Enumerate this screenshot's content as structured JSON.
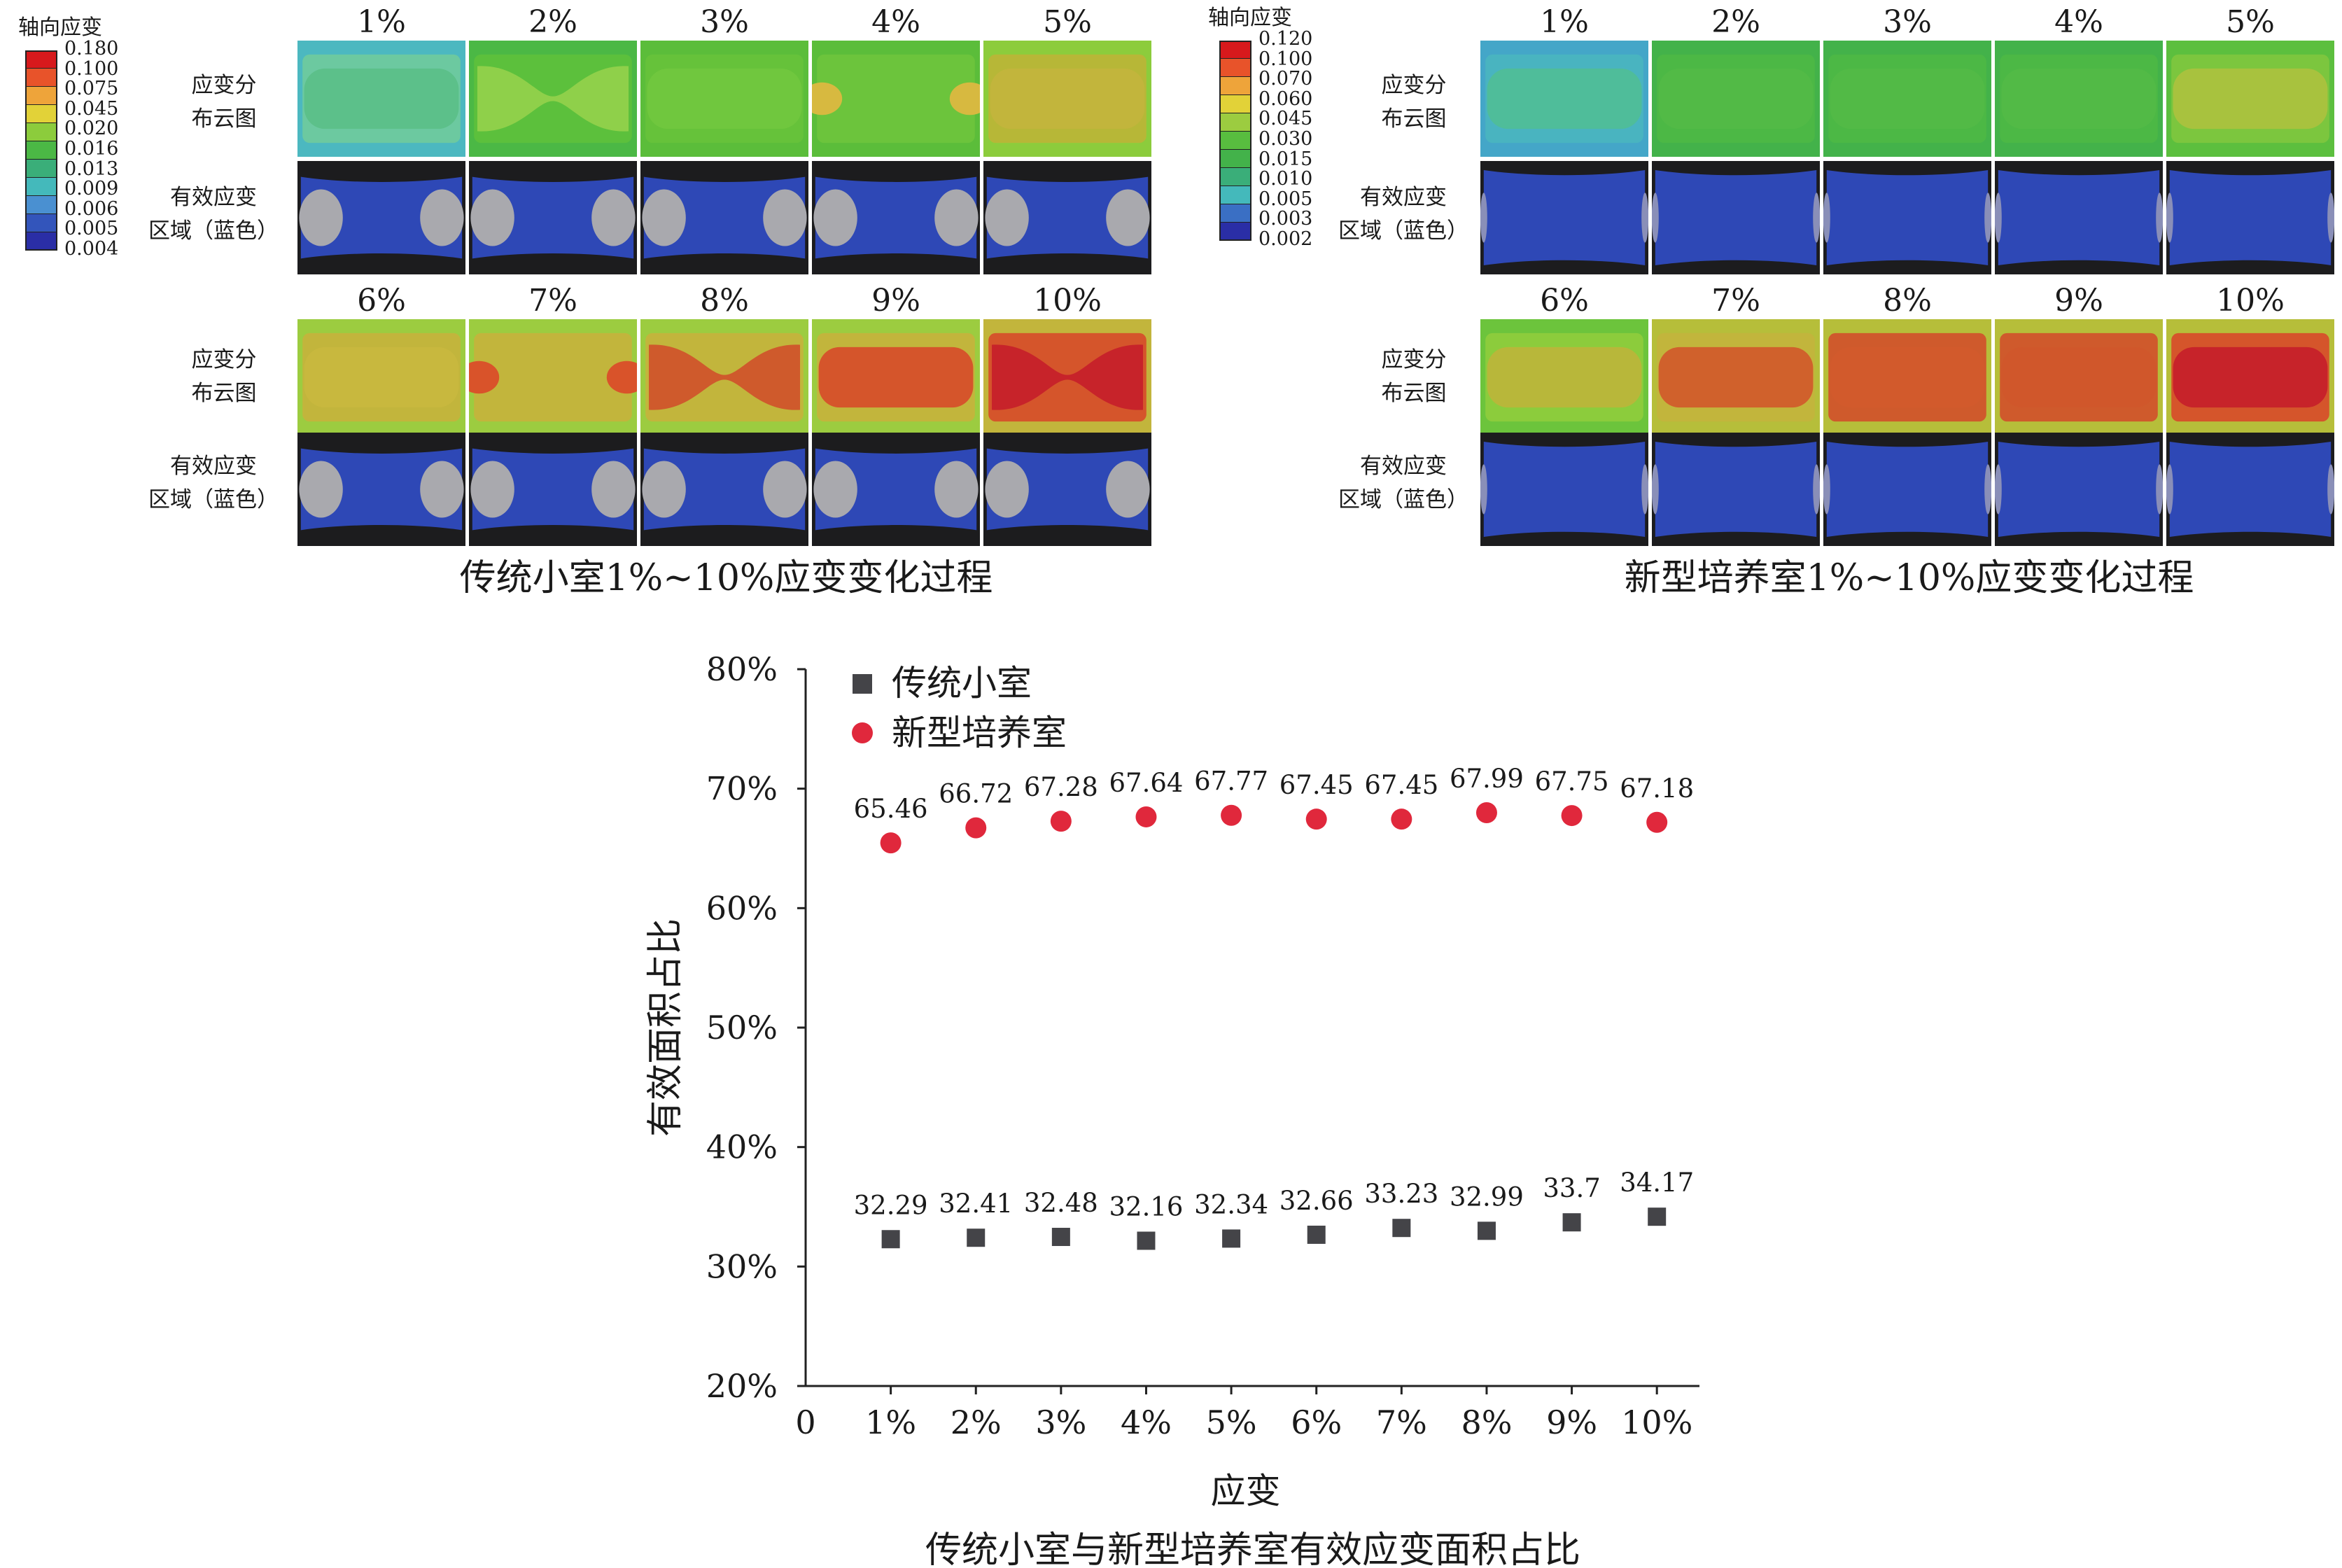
{
  "panels": [
    {
      "legend_title": "轴向应变",
      "legend_values": [
        "0.180",
        "0.100",
        "0.075",
        "0.045",
        "0.020",
        "0.016",
        "0.013",
        "0.009",
        "0.006",
        "0.005",
        "0.004"
      ],
      "legend_colors": [
        "#d7191c",
        "#e8532a",
        "#eea43a",
        "#e2d238",
        "#8ccc3c",
        "#4bb845",
        "#3aae79",
        "#44b9bb",
        "#4a90d1",
        "#3355bb",
        "#2a2ea6"
      ],
      "row1_labels": [
        "1%",
        "2%",
        "3%",
        "4%",
        "5%"
      ],
      "row2_labels": [
        "6%",
        "7%",
        "8%",
        "9%",
        "10%"
      ],
      "row_label_cloud": [
        "应变分",
        "布云图"
      ],
      "row_label_area": [
        "有效应变",
        "区域（蓝色）"
      ],
      "cloud_row1": [
        {
          "base": "#6cc9a0",
          "mid": "#5cc08a",
          "edge": "#4cb8c0",
          "shape": "flat"
        },
        {
          "base": "#5cc03c",
          "mid": "#8fd04a",
          "edge": "#4bb845",
          "shape": "pinch"
        },
        {
          "base": "#66c23a",
          "mid": "#70c73e",
          "edge": "#5bbd3a",
          "shape": "flat"
        },
        {
          "base": "#6cc43c",
          "mid": "#75c83e",
          "edge": "#5bbd3a",
          "shape": "dots",
          "dot": "#d7b940"
        },
        {
          "base": "#b7b737",
          "mid": "#c2b53c",
          "edge": "#8ccc3c",
          "shape": "flat"
        }
      ],
      "cloud_row2": [
        {
          "base": "#c2b53c",
          "mid": "#c8b83e",
          "edge": "#9ccc40",
          "shape": "flat"
        },
        {
          "base": "#c2b53c",
          "mid": "#c8b83e",
          "edge": "#9ccc40",
          "shape": "dots",
          "dot": "#d9532a"
        },
        {
          "base": "#c2b53c",
          "mid": "#cf5a2c",
          "edge": "#9ccc40",
          "shape": "pinch"
        },
        {
          "base": "#c2b53c",
          "mid": "#d5552b",
          "edge": "#9ccc40",
          "shape": "flat"
        },
        {
          "base": "#d5552b",
          "mid": "#c7232a",
          "edge": "#c2b53c",
          "shape": "pinch"
        }
      ],
      "area_style": "ellipses",
      "caption": "传统小室1%~10%应变变化过程"
    },
    {
      "legend_title": "轴向应变",
      "legend_values": [
        "0.120",
        "0.100",
        "0.070",
        "0.060",
        "0.045",
        "0.030",
        "0.015",
        "0.010",
        "0.005",
        "0.003",
        "0.002"
      ],
      "legend_colors": [
        "#d7191c",
        "#e8532a",
        "#eea43a",
        "#e2d238",
        "#9ccc40",
        "#58bd3f",
        "#43b24a",
        "#3aae79",
        "#44b9bb",
        "#3a6fc4",
        "#2a2ea6"
      ],
      "row1_labels": [
        "1%",
        "2%",
        "3%",
        "4%",
        "5%"
      ],
      "row2_labels": [
        "6%",
        "7%",
        "8%",
        "9%",
        "10%"
      ],
      "row_label_cloud": [
        "应变分",
        "布云图"
      ],
      "row_label_area": [
        "有效应变",
        "区域（蓝色）"
      ],
      "cloud_row1": [
        {
          "base": "#49b4c0",
          "mid": "#4fbd9a",
          "edge": "#44a6c8",
          "shape": "flat"
        },
        {
          "base": "#4cb845",
          "mid": "#52ba46",
          "edge": "#43b24a",
          "shape": "flat"
        },
        {
          "base": "#4cb845",
          "mid": "#52ba46",
          "edge": "#43b24a",
          "shape": "flat"
        },
        {
          "base": "#4cb845",
          "mid": "#52ba46",
          "edge": "#43b24a",
          "shape": "flat"
        },
        {
          "base": "#7cc63e",
          "mid": "#a8c23e",
          "edge": "#5cbf3e",
          "shape": "flat"
        }
      ],
      "cloud_row2": [
        {
          "base": "#8ccc3c",
          "mid": "#b8b73a",
          "edge": "#6cc43c",
          "shape": "flat"
        },
        {
          "base": "#c2b53c",
          "mid": "#d0612c",
          "edge": "#b6be3a",
          "shape": "flat"
        },
        {
          "base": "#cf5a2c",
          "mid": "#d25a2c",
          "edge": "#b6be3a",
          "shape": "flat"
        },
        {
          "base": "#cf5a2c",
          "mid": "#d0572b",
          "edge": "#b6be3a",
          "shape": "flat"
        },
        {
          "base": "#d5552b",
          "mid": "#c7232a",
          "edge": "#b6be3a",
          "shape": "flat"
        }
      ],
      "area_style": "full",
      "caption": "新型培养室1%~10%应变变化过程"
    }
  ],
  "chart_data": {
    "type": "scatter",
    "categories": [
      "0",
      "1%",
      "2%",
      "3%",
      "4%",
      "5%",
      "6%",
      "7%",
      "8%",
      "9%",
      "10%"
    ],
    "x": [
      1,
      2,
      3,
      4,
      5,
      6,
      7,
      8,
      9,
      10
    ],
    "series": [
      {
        "name": "传统小室",
        "marker": "square",
        "color": "#444448",
        "values": [
          32.29,
          32.41,
          32.48,
          32.16,
          32.34,
          32.66,
          33.23,
          32.99,
          33.7,
          34.17
        ],
        "labels": [
          "32.29",
          "32.41",
          "32.48",
          "32.16",
          "32.34",
          "32.66",
          "33.23",
          "32.99",
          "33.7",
          "34.17"
        ]
      },
      {
        "name": "新型培养室",
        "marker": "circle",
        "color": "#e0283c",
        "values": [
          65.46,
          66.72,
          67.28,
          67.64,
          67.77,
          67.45,
          67.45,
          67.99,
          67.75,
          67.18
        ],
        "labels": [
          "65.46",
          "66.72",
          "67.28",
          "67.64",
          "67.77",
          "67.45",
          "67.45",
          "67.99",
          "67.75",
          "67.18"
        ]
      }
    ],
    "yticks": [
      "20%",
      "30%",
      "40%",
      "50%",
      "60%",
      "70%",
      "80%"
    ],
    "ylim": [
      20,
      80
    ],
    "xlabel": "应变",
    "ylabel": "有效面积占比",
    "title": "传统小室与新型培养室有效应变面积占比",
    "legend_position": "top-left"
  }
}
